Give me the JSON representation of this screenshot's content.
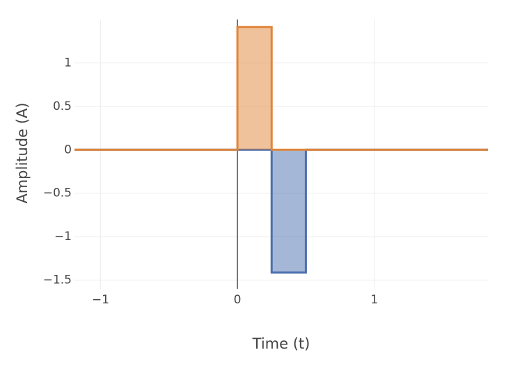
{
  "chart_data": {
    "type": "area",
    "x_label": "Time (t)",
    "y_label": "Amplitude (A)",
    "xlim": [
      -1.19,
      1.83
    ],
    "ylim": [
      -1.6,
      1.5
    ],
    "xticks": [
      {
        "value": -1,
        "label": "−1"
      },
      0,
      1
    ],
    "yticks": [
      {
        "value": -1.5,
        "label": "−1.5"
      },
      {
        "value": -1,
        "label": "−1"
      },
      {
        "value": -0.5,
        "label": "−0.5"
      },
      0,
      0.5,
      1
    ],
    "grid": true,
    "series": [
      {
        "color": "#4c6fae",
        "x": [
          -1.19,
          0.25,
          0.25,
          0.5,
          0.5,
          1.83
        ],
        "values": [
          0,
          0,
          -1.414,
          -1.414,
          0,
          0
        ]
      },
      {
        "color": "#e0863a",
        "x": [
          -1.19,
          0,
          0,
          0.25,
          0.25,
          1.83
        ],
        "values": [
          0,
          0,
          1.414,
          1.414,
          0,
          0
        ]
      }
    ]
  }
}
